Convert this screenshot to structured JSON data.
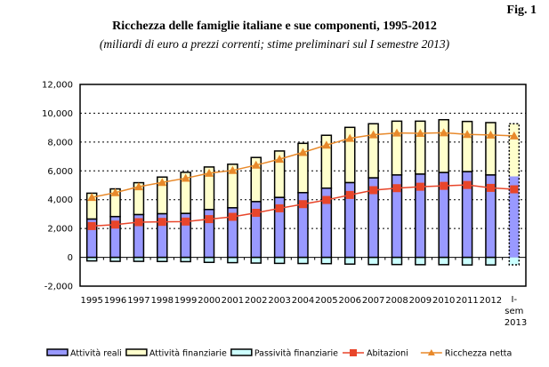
{
  "figure_label": "Fig. 1",
  "chart_data": {
    "type": "bar",
    "stacked": true,
    "title": "Ricchezza delle famiglie italiane e sue componenti, 1995-2012",
    "subtitle": "(miliardi di euro a prezzi correnti; stime preliminari sul I semestre 2013)",
    "xlabel": "",
    "ylabel": "",
    "ylim": [
      -2000,
      12000
    ],
    "yticks": [
      "12,000",
      "10,000",
      "8,000",
      "6,000",
      "4,000",
      "2,000",
      "0",
      "-2,000"
    ],
    "ytick_values": [
      12000,
      10000,
      8000,
      6000,
      4000,
      2000,
      0,
      -2000
    ],
    "grid": true,
    "legend_position": "bottom",
    "categories": [
      "1995",
      "1996",
      "1997",
      "1998",
      "1999",
      "2000",
      "2001",
      "2002",
      "2003",
      "2004",
      "2005",
      "2006",
      "2007",
      "2008",
      "2009",
      "2010",
      "2011",
      "2012",
      "I-sem 2013"
    ],
    "category_lines": [
      [
        "1995"
      ],
      [
        "1996"
      ],
      [
        "1997"
      ],
      [
        "1998"
      ],
      [
        "1999"
      ],
      [
        "2000"
      ],
      [
        "2001"
      ],
      [
        "2002"
      ],
      [
        "2003"
      ],
      [
        "2004"
      ],
      [
        "2005"
      ],
      [
        "2006"
      ],
      [
        "2007"
      ],
      [
        "2008"
      ],
      [
        "2009"
      ],
      [
        "2010"
      ],
      [
        "2011"
      ],
      [
        "2012"
      ],
      [
        "I-",
        "sem",
        "2013"
      ]
    ],
    "series": [
      {
        "name": "Attività reali",
        "kind": "bar",
        "color": "#9999ff",
        "values": [
          2660,
          2830,
          2970,
          3030,
          3050,
          3320,
          3440,
          3870,
          4160,
          4490,
          4800,
          5190,
          5520,
          5720,
          5780,
          5890,
          5950,
          5720,
          5620
        ]
      },
      {
        "name": "Attività finanziarie",
        "kind": "bar",
        "color": "#ffffcc",
        "values": [
          1790,
          1920,
          2210,
          2540,
          2850,
          2950,
          3020,
          3060,
          3220,
          3420,
          3670,
          3830,
          3750,
          3730,
          3670,
          3660,
          3480,
          3630,
          3650
        ]
      },
      {
        "name": "Passività finanziarie",
        "kind": "bar",
        "color": "#ccffff",
        "values": [
          -250,
          -280,
          -280,
          -290,
          -300,
          -350,
          -370,
          -400,
          -420,
          -430,
          -440,
          -470,
          -500,
          -500,
          -510,
          -510,
          -530,
          -530,
          -520
        ]
      },
      {
        "name": "Abitazioni",
        "kind": "line",
        "marker": "square",
        "color": "#e8452a",
        "values": [
          2170,
          2270,
          2440,
          2460,
          2480,
          2650,
          2810,
          3090,
          3400,
          3690,
          3980,
          4330,
          4660,
          4800,
          4900,
          4960,
          5020,
          4820,
          4720
        ]
      },
      {
        "name": "Ricchezza netta",
        "kind": "line",
        "marker": "triangle",
        "color": "#e8892a",
        "values": [
          4160,
          4490,
          4900,
          5200,
          5490,
          5840,
          6030,
          6400,
          6810,
          7280,
          7790,
          8260,
          8510,
          8630,
          8610,
          8650,
          8530,
          8490,
          8430
        ]
      }
    ],
    "estimate_category": "I-sem 2013"
  }
}
